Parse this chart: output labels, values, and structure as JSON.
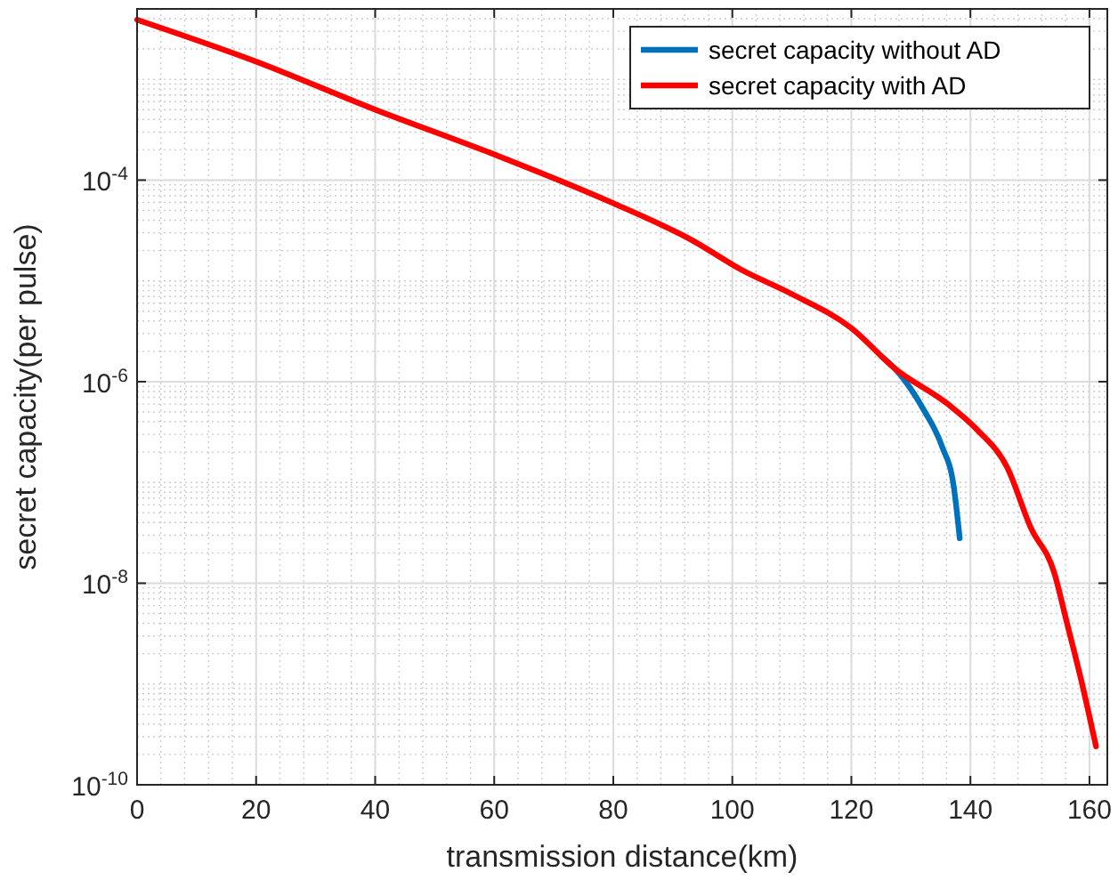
{
  "chart_data": {
    "type": "line",
    "xlabel": "transmission distance(km)",
    "ylabel": "secret capacity(per pulse)",
    "log": "y",
    "grid": true,
    "legend": "top right",
    "line_style": "solid",
    "marker": "none",
    "xlim": [
      0,
      163
    ],
    "xticks": [
      0,
      20,
      40,
      60,
      80,
      100,
      120,
      140,
      160
    ],
    "ylim": [
      1e-10,
      0.005
    ],
    "yticks": [
      {
        "value": 1e-10,
        "label": "10$^{-10}$"
      },
      {
        "value": 1e-08,
        "label": "10$^{-8}$"
      },
      {
        "value": 1e-06,
        "label": "10$^{-6}$"
      },
      {
        "value": 0.0001,
        "label": "10$^{-4}$"
      }
    ],
    "series": [
      {
        "name": "secret capacity without AD",
        "color": "#0072bd",
        "x": [
          125,
          127.3,
          132.2,
          135.2,
          137.2,
          138.2
        ],
        "values": [
          1.8e-06,
          1.35e-06,
          5.2e-07,
          2.3e-07,
          9.1e-08,
          2.8e-08
        ]
      },
      {
        "name": "secret capacity with AD",
        "color": "#ff0000",
        "x": [
          0,
          20,
          40,
          60,
          80,
          93.4,
          101.4,
          110,
          120,
          127.3,
          136.2,
          141.2,
          146.2,
          150.1,
          154.1,
          156.1,
          158.6,
          161.1
        ],
        "values": [
          0.0039,
          0.0015,
          0.0005,
          0.00018,
          5.9e-05,
          2.5e-05,
          1.3e-05,
          7.4e-06,
          3.4e-06,
          1.35e-06,
          6e-07,
          3.3e-07,
          1.4e-07,
          3.6e-08,
          1.26e-08,
          4.3e-09,
          1.1e-09,
          2.4e-10
        ]
      }
    ]
  }
}
